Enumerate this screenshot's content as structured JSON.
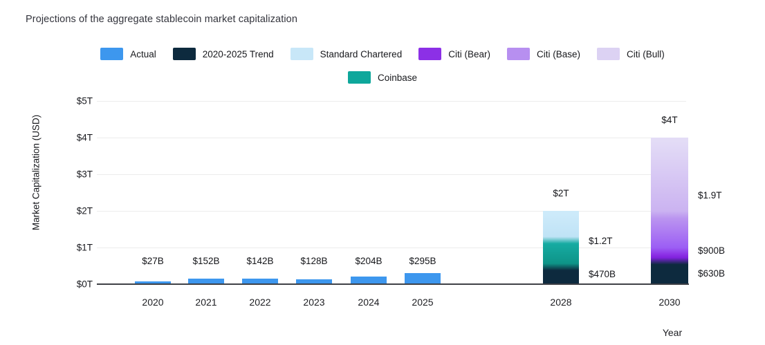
{
  "title": "Projections of the aggregate stablecoin market capitalization",
  "chart_data": {
    "type": "bar",
    "stacked": true,
    "title": "Projections of the aggregate stablecoin market capitalization",
    "xlabel": "Year",
    "ylabel": "Market Capitalization (USD)",
    "ylim_trillions": [
      0,
      5
    ],
    "grid": true,
    "legend_position": "top-center",
    "y_ticks": [
      {
        "label": "$5T",
        "trillions": 5
      },
      {
        "label": "$4T",
        "trillions": 4
      },
      {
        "label": "$3T",
        "trillions": 3
      },
      {
        "label": "$2T",
        "trillions": 2
      },
      {
        "label": "$1T",
        "trillions": 1
      },
      {
        "label": "$0T",
        "trillions": 0
      }
    ],
    "series": [
      {
        "name": "Actual",
        "color": "#3d97ee"
      },
      {
        "name": "2020-2025 Trend",
        "color": "#0d2a3e"
      },
      {
        "name": "Standard Chartered",
        "color": "#c8e7f8",
        "gradient": [
          "#cdeafa",
          "#bfe3f6"
        ]
      },
      {
        "name": "Citi (Bear)",
        "color": "#8c30e6",
        "gradient": [
          "#8c30e6",
          "#7f22dc"
        ]
      },
      {
        "name": "Citi (Base)",
        "color": "#b78ff0",
        "gradient": [
          "#bb95f0",
          "#9c5ef4"
        ]
      },
      {
        "name": "Citi (Bull)",
        "color": "#dcd2f3",
        "gradient": [
          "#e3dcf6",
          "#cbb3f1"
        ]
      },
      {
        "name": "Coinbase",
        "color": "#0ea79b",
        "gradient": [
          "#16aba2",
          "#0e9488"
        ]
      }
    ],
    "bars": [
      {
        "category": "2020",
        "total_label": "$27B",
        "segments": [
          {
            "series": "Actual",
            "value_trillions": 0.027
          }
        ]
      },
      {
        "category": "2021",
        "total_label": "$152B",
        "segments": [
          {
            "series": "Actual",
            "value_trillions": 0.152
          }
        ]
      },
      {
        "category": "2022",
        "total_label": "$142B",
        "segments": [
          {
            "series": "Actual",
            "value_trillions": 0.142
          }
        ]
      },
      {
        "category": "2023",
        "total_label": "$128B",
        "segments": [
          {
            "series": "Actual",
            "value_trillions": 0.128
          }
        ]
      },
      {
        "category": "2024",
        "total_label": "$204B",
        "segments": [
          {
            "series": "Actual",
            "value_trillions": 0.204
          }
        ]
      },
      {
        "category": "2025",
        "total_label": "$295B",
        "segments": [
          {
            "series": "Actual",
            "value_trillions": 0.295
          }
        ]
      },
      {
        "category": "2028",
        "total_label": "$2T",
        "segments": [
          {
            "series": "2020-2025 Trend",
            "value_trillions": 0.47,
            "side_label": "$470B"
          },
          {
            "series": "Coinbase",
            "value_trillions": 0.73,
            "side_label": "$1.2T"
          },
          {
            "series": "Standard Chartered",
            "value_trillions": 0.8
          }
        ]
      },
      {
        "category": "2030",
        "total_label": "$4T",
        "segments": [
          {
            "series": "2020-2025 Trend",
            "value_trillions": 0.63,
            "side_label": "$630B"
          },
          {
            "series": "Citi (Bear)",
            "value_trillions": 0.27,
            "side_label": "$900B"
          },
          {
            "series": "Citi (Base)",
            "value_trillions": 1.0,
            "side_label": "$1.9T"
          },
          {
            "series": "Citi (Bull)",
            "value_trillions": 2.1
          }
        ]
      }
    ]
  }
}
